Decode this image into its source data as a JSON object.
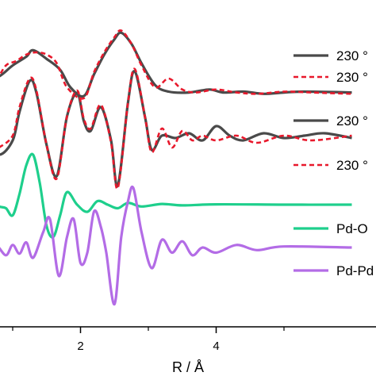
{
  "chart_data": {
    "type": "line",
    "xlabel": "R / Å",
    "ylabel": "",
    "title": "",
    "xlim": [
      0.2,
      6.0
    ],
    "xticks": [
      2,
      4
    ],
    "x_minor_ticks": [
      1,
      3,
      5
    ],
    "y_ticks_shown": false,
    "grid": false,
    "legend_position": "right",
    "legend": [
      {
        "label": "230 °",
        "color": "#4a4a4a",
        "dash": "solid"
      },
      {
        "label": "230 °",
        "color": "#e8192c",
        "dash": "dashed"
      },
      {
        "label": "230 °",
        "color": "#4a4a4a",
        "dash": "solid"
      },
      {
        "label": "230 °",
        "color": "#e8192c",
        "dash": "dashed"
      },
      {
        "label": "Pd-O",
        "color": "#1ecf8c",
        "dash": "solid"
      },
      {
        "label": "Pd-Pd",
        "color": "#b36ce6",
        "dash": "solid"
      }
    ],
    "series": [
      {
        "color": "#4a4a4a",
        "dash": "solid",
        "width": 3.2,
        "points": [
          [
            0.2,
            0.0
          ],
          [
            0.5,
            0.05
          ],
          [
            0.8,
            0.25
          ],
          [
            1.0,
            0.5
          ],
          [
            1.2,
            0.7
          ],
          [
            1.3,
            0.85
          ],
          [
            1.5,
            0.65
          ],
          [
            1.7,
            0.4
          ],
          [
            1.85,
            0.0
          ],
          [
            2.05,
            -0.2
          ],
          [
            2.2,
            0.3
          ],
          [
            2.35,
            0.75
          ],
          [
            2.5,
            1.1
          ],
          [
            2.6,
            1.25
          ],
          [
            2.75,
            1.0
          ],
          [
            2.9,
            0.55
          ],
          [
            3.1,
            0.05
          ],
          [
            3.3,
            -0.1
          ],
          [
            3.6,
            -0.12
          ],
          [
            3.9,
            -0.05
          ],
          [
            4.1,
            -0.12
          ],
          [
            4.4,
            -0.1
          ],
          [
            4.7,
            -0.15
          ],
          [
            5.0,
            -0.12
          ],
          [
            5.3,
            -0.1
          ],
          [
            6.0,
            -0.12
          ]
        ]
      },
      {
        "color": "#e8192c",
        "dash": "dashed",
        "width": 2.6,
        "points": [
          [
            0.2,
            0.05
          ],
          [
            0.5,
            -0.2
          ],
          [
            0.75,
            0.15
          ],
          [
            0.9,
            0.5
          ],
          [
            1.05,
            0.6
          ],
          [
            1.2,
            0.75
          ],
          [
            1.35,
            0.8
          ],
          [
            1.5,
            0.75
          ],
          [
            1.65,
            0.55
          ],
          [
            1.8,
            0.0
          ],
          [
            2.05,
            -0.25
          ],
          [
            2.2,
            0.35
          ],
          [
            2.35,
            0.8
          ],
          [
            2.5,
            1.15
          ],
          [
            2.6,
            1.3
          ],
          [
            2.75,
            1.0
          ],
          [
            2.9,
            0.5
          ],
          [
            3.1,
            0.0
          ],
          [
            3.3,
            0.2
          ],
          [
            3.5,
            -0.05
          ],
          [
            3.7,
            -0.12
          ],
          [
            4.0,
            -0.05
          ],
          [
            4.3,
            -0.12
          ],
          [
            4.6,
            -0.15
          ],
          [
            5.0,
            -0.1
          ],
          [
            5.4,
            -0.12
          ],
          [
            6.0,
            -0.15
          ]
        ]
      },
      {
        "color": "#4a4a4a",
        "dash": "solid",
        "width": 3.2,
        "points": [
          [
            0.2,
            0.0
          ],
          [
            0.4,
            0.2
          ],
          [
            0.6,
            -0.2
          ],
          [
            0.8,
            -0.5
          ],
          [
            1.0,
            -0.2
          ],
          [
            1.1,
            0.4
          ],
          [
            1.25,
            1.05
          ],
          [
            1.35,
            0.8
          ],
          [
            1.5,
            -0.3
          ],
          [
            1.65,
            -0.95
          ],
          [
            1.8,
            0.3
          ],
          [
            1.95,
            0.8
          ],
          [
            2.05,
            0.2
          ],
          [
            2.15,
            0.0
          ],
          [
            2.3,
            0.5
          ],
          [
            2.45,
            -0.2
          ],
          [
            2.55,
            -1.15
          ],
          [
            2.7,
            0.6
          ],
          [
            2.8,
            1.25
          ],
          [
            2.95,
            0.3
          ],
          [
            3.05,
            -0.4
          ],
          [
            3.2,
            -0.1
          ],
          [
            3.4,
            -0.15
          ],
          [
            3.6,
            -0.05
          ],
          [
            3.8,
            -0.2
          ],
          [
            4.0,
            0.1
          ],
          [
            4.2,
            -0.1
          ],
          [
            4.4,
            -0.2
          ],
          [
            4.7,
            -0.05
          ],
          [
            5.0,
            -0.15
          ],
          [
            5.3,
            -0.1
          ],
          [
            5.6,
            -0.05
          ],
          [
            6.0,
            -0.15
          ]
        ]
      },
      {
        "color": "#e8192c",
        "dash": "dashed",
        "width": 2.6,
        "points": [
          [
            0.8,
            -0.35
          ],
          [
            1.0,
            -0.1
          ],
          [
            1.1,
            0.5
          ],
          [
            1.25,
            1.1
          ],
          [
            1.35,
            0.85
          ],
          [
            1.5,
            -0.3
          ],
          [
            1.65,
            -1.0
          ],
          [
            1.8,
            0.3
          ],
          [
            1.95,
            0.85
          ],
          [
            2.05,
            0.25
          ],
          [
            2.15,
            0.05
          ],
          [
            2.3,
            0.55
          ],
          [
            2.45,
            -0.25
          ],
          [
            2.55,
            -1.2
          ],
          [
            2.7,
            0.6
          ],
          [
            2.8,
            1.3
          ],
          [
            2.95,
            0.3
          ],
          [
            3.05,
            -0.45
          ],
          [
            3.2,
            0.05
          ],
          [
            3.35,
            -0.35
          ],
          [
            3.5,
            0.0
          ],
          [
            3.65,
            -0.2
          ],
          [
            3.8,
            -0.1
          ],
          [
            4.0,
            -0.2
          ],
          [
            4.3,
            -0.1
          ],
          [
            4.6,
            -0.25
          ],
          [
            5.0,
            -0.1
          ],
          [
            5.4,
            -0.2
          ],
          [
            6.0,
            -0.1
          ]
        ]
      },
      {
        "color": "#1ecf8c",
        "dash": "solid",
        "width": 3.2,
        "points": [
          [
            0.2,
            0.0
          ],
          [
            0.35,
            0.12
          ],
          [
            0.5,
            0.25
          ],
          [
            0.65,
            0.1
          ],
          [
            0.8,
            -0.05
          ],
          [
            0.9,
            -0.1
          ],
          [
            1.0,
            -0.3
          ],
          [
            1.1,
            0.3
          ],
          [
            1.2,
            1.1
          ],
          [
            1.3,
            1.4
          ],
          [
            1.4,
            0.6
          ],
          [
            1.5,
            -0.6
          ],
          [
            1.6,
            -0.9
          ],
          [
            1.7,
            -0.3
          ],
          [
            1.8,
            0.35
          ],
          [
            1.95,
            0.0
          ],
          [
            2.1,
            -0.2
          ],
          [
            2.25,
            0.1
          ],
          [
            2.4,
            0.0
          ],
          [
            2.55,
            -0.1
          ],
          [
            2.7,
            0.05
          ],
          [
            2.9,
            -0.05
          ],
          [
            3.2,
            0.02
          ],
          [
            3.5,
            -0.02
          ],
          [
            4.0,
            0.01
          ],
          [
            5.0,
            0.0
          ],
          [
            6.0,
            0.0
          ]
        ]
      },
      {
        "color": "#b36ce6",
        "dash": "solid",
        "width": 3.2,
        "points": [
          [
            0.2,
            0.0
          ],
          [
            0.4,
            0.02
          ],
          [
            0.6,
            -0.05
          ],
          [
            0.75,
            0.05
          ],
          [
            0.9,
            -0.15
          ],
          [
            1.0,
            0.05
          ],
          [
            1.1,
            -0.12
          ],
          [
            1.2,
            0.1
          ],
          [
            1.3,
            -0.2
          ],
          [
            1.45,
            0.3
          ],
          [
            1.55,
            0.55
          ],
          [
            1.68,
            -0.55
          ],
          [
            1.8,
            0.2
          ],
          [
            1.9,
            0.55
          ],
          [
            2.0,
            -0.3
          ],
          [
            2.1,
            -0.1
          ],
          [
            2.2,
            0.7
          ],
          [
            2.3,
            0.4
          ],
          [
            2.38,
            -0.1
          ],
          [
            2.5,
            -1.1
          ],
          [
            2.6,
            0.2
          ],
          [
            2.7,
            0.9
          ],
          [
            2.78,
            1.15
          ],
          [
            2.9,
            0.3
          ],
          [
            3.05,
            -0.4
          ],
          [
            3.2,
            0.15
          ],
          [
            3.35,
            -0.1
          ],
          [
            3.5,
            0.12
          ],
          [
            3.65,
            -0.15
          ],
          [
            3.8,
            0.0
          ],
          [
            4.0,
            -0.1
          ],
          [
            4.3,
            0.05
          ],
          [
            4.6,
            -0.05
          ],
          [
            5.0,
            0.02
          ],
          [
            6.0,
            0.0
          ]
        ]
      }
    ]
  }
}
